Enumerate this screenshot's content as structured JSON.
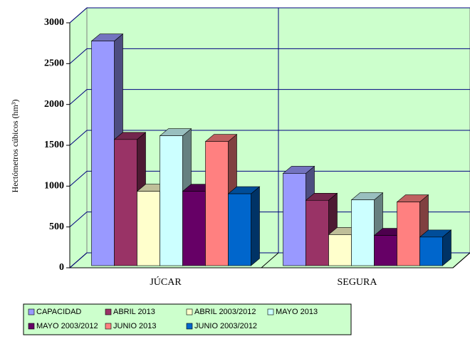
{
  "chart_data": {
    "type": "bar3d",
    "y_label": "Hectómetros cúbicos (hm³)",
    "categories": [
      "JÚCAR",
      "SEGURA"
    ],
    "series": [
      {
        "name": "CAPACIDAD",
        "color": "#9999ff",
        "values": [
          2750,
          1130
        ]
      },
      {
        "name": "ABRIL 2013",
        "color": "#993366",
        "values": [
          1545,
          800
        ]
      },
      {
        "name": "ABRIL 2003/2012",
        "color": "#ffffcc",
        "values": [
          910,
          380
        ]
      },
      {
        "name": "MAYO 2013",
        "color": "#ccffff",
        "values": [
          1590,
          805
        ]
      },
      {
        "name": "MAYO 2003/2012",
        "color": "#660066",
        "values": [
          910,
          370
        ]
      },
      {
        "name": "JUNIO 2013",
        "color": "#ff8080",
        "values": [
          1520,
          780
        ]
      },
      {
        "name": "JUNIO 2003/2012",
        "color": "#0066cc",
        "values": [
          880,
          350
        ]
      }
    ],
    "ylim": [
      0,
      3000
    ],
    "yticks": [
      0,
      500,
      1000,
      1500,
      2000,
      2500,
      3000
    ],
    "grid": true,
    "legend": "bottom"
  }
}
